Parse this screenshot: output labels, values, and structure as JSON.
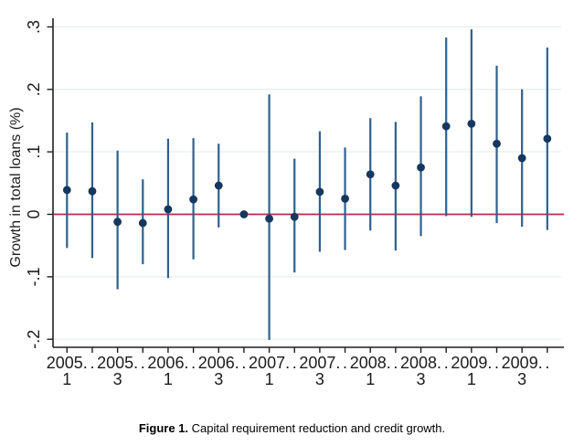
{
  "figure": {
    "caption_label": "Figure 1.",
    "caption_text": " Capital requirement reduction and credit growth."
  },
  "chart_data": {
    "type": "scatter",
    "variant": "coefficient_plot_with_confidence_intervals",
    "title": "",
    "xlabel": "",
    "ylabel": "Growth in total loans (%)",
    "ylim": [
      -0.22,
      0.32
    ],
    "yticks": [
      0.3,
      0.2,
      0.1,
      0,
      -0.1,
      -0.2
    ],
    "ytick_labels": [
      ".3",
      ".2",
      ".1",
      "0",
      "-.1",
      "-.2"
    ],
    "grid": "horizontal-gridlines",
    "legend": "none",
    "zero_reference_line": 0,
    "categories": [
      "2005q1",
      "2005q2",
      "2005q3",
      "2005q4",
      "2006q1",
      "2006q2",
      "2006q3",
      "2006q4",
      "2007q1",
      "2007q2",
      "2007q3",
      "2007q4",
      "2008q1",
      "2008q2",
      "2008q3",
      "2008q4",
      "2009q1",
      "2009q2",
      "2009q3",
      "2009q4"
    ],
    "xtick_labels": [
      [
        "2005.",
        "1"
      ],
      [
        ".",
        ""
      ],
      [
        "2005.",
        "3"
      ],
      [
        ".",
        ""
      ],
      [
        "2006.",
        "1"
      ],
      [
        ".",
        ""
      ],
      [
        "2006.",
        "3"
      ],
      [
        ".",
        ""
      ],
      [
        "2007.",
        "1"
      ],
      [
        ".",
        ""
      ],
      [
        "2007.",
        "3"
      ],
      [
        ".",
        ""
      ],
      [
        "2008.",
        "1"
      ],
      [
        ".",
        ""
      ],
      [
        "2008.",
        "3"
      ],
      [
        ".",
        ""
      ],
      [
        "2009.",
        "1"
      ],
      [
        ".",
        ""
      ],
      [
        "2009.",
        "3"
      ],
      [
        ".",
        ""
      ]
    ],
    "series": [
      {
        "name": "estimate",
        "values": [
          0.039,
          0.037,
          -0.012,
          -0.014,
          0.008,
          0.024,
          0.046,
          0.0,
          -0.007,
          -0.004,
          0.036,
          0.025,
          0.064,
          0.046,
          0.075,
          0.141,
          0.145,
          0.113,
          0.09,
          0.121
        ]
      },
      {
        "name": "ci_lower",
        "values": [
          -0.054,
          -0.07,
          -0.12,
          -0.08,
          -0.102,
          -0.072,
          -0.021,
          -0.005,
          -0.201,
          -0.093,
          -0.06,
          -0.057,
          -0.026,
          -0.058,
          -0.035,
          -0.003,
          -0.004,
          -0.014,
          -0.02,
          -0.025
        ]
      },
      {
        "name": "ci_upper",
        "values": [
          0.131,
          0.147,
          0.102,
          0.056,
          0.121,
          0.122,
          0.113,
          0.006,
          0.192,
          0.089,
          0.133,
          0.107,
          0.154,
          0.148,
          0.189,
          0.283,
          0.296,
          0.238,
          0.2,
          0.267
        ]
      }
    ],
    "colors": {
      "estimate_dot": "#16375e",
      "ci_line": "#2f608c",
      "zero_line": "#b8294a",
      "gridline": "#e8eef1",
      "axis": "#1f1f1f",
      "text": "#1c1c1c",
      "background": "#ffffff"
    }
  }
}
